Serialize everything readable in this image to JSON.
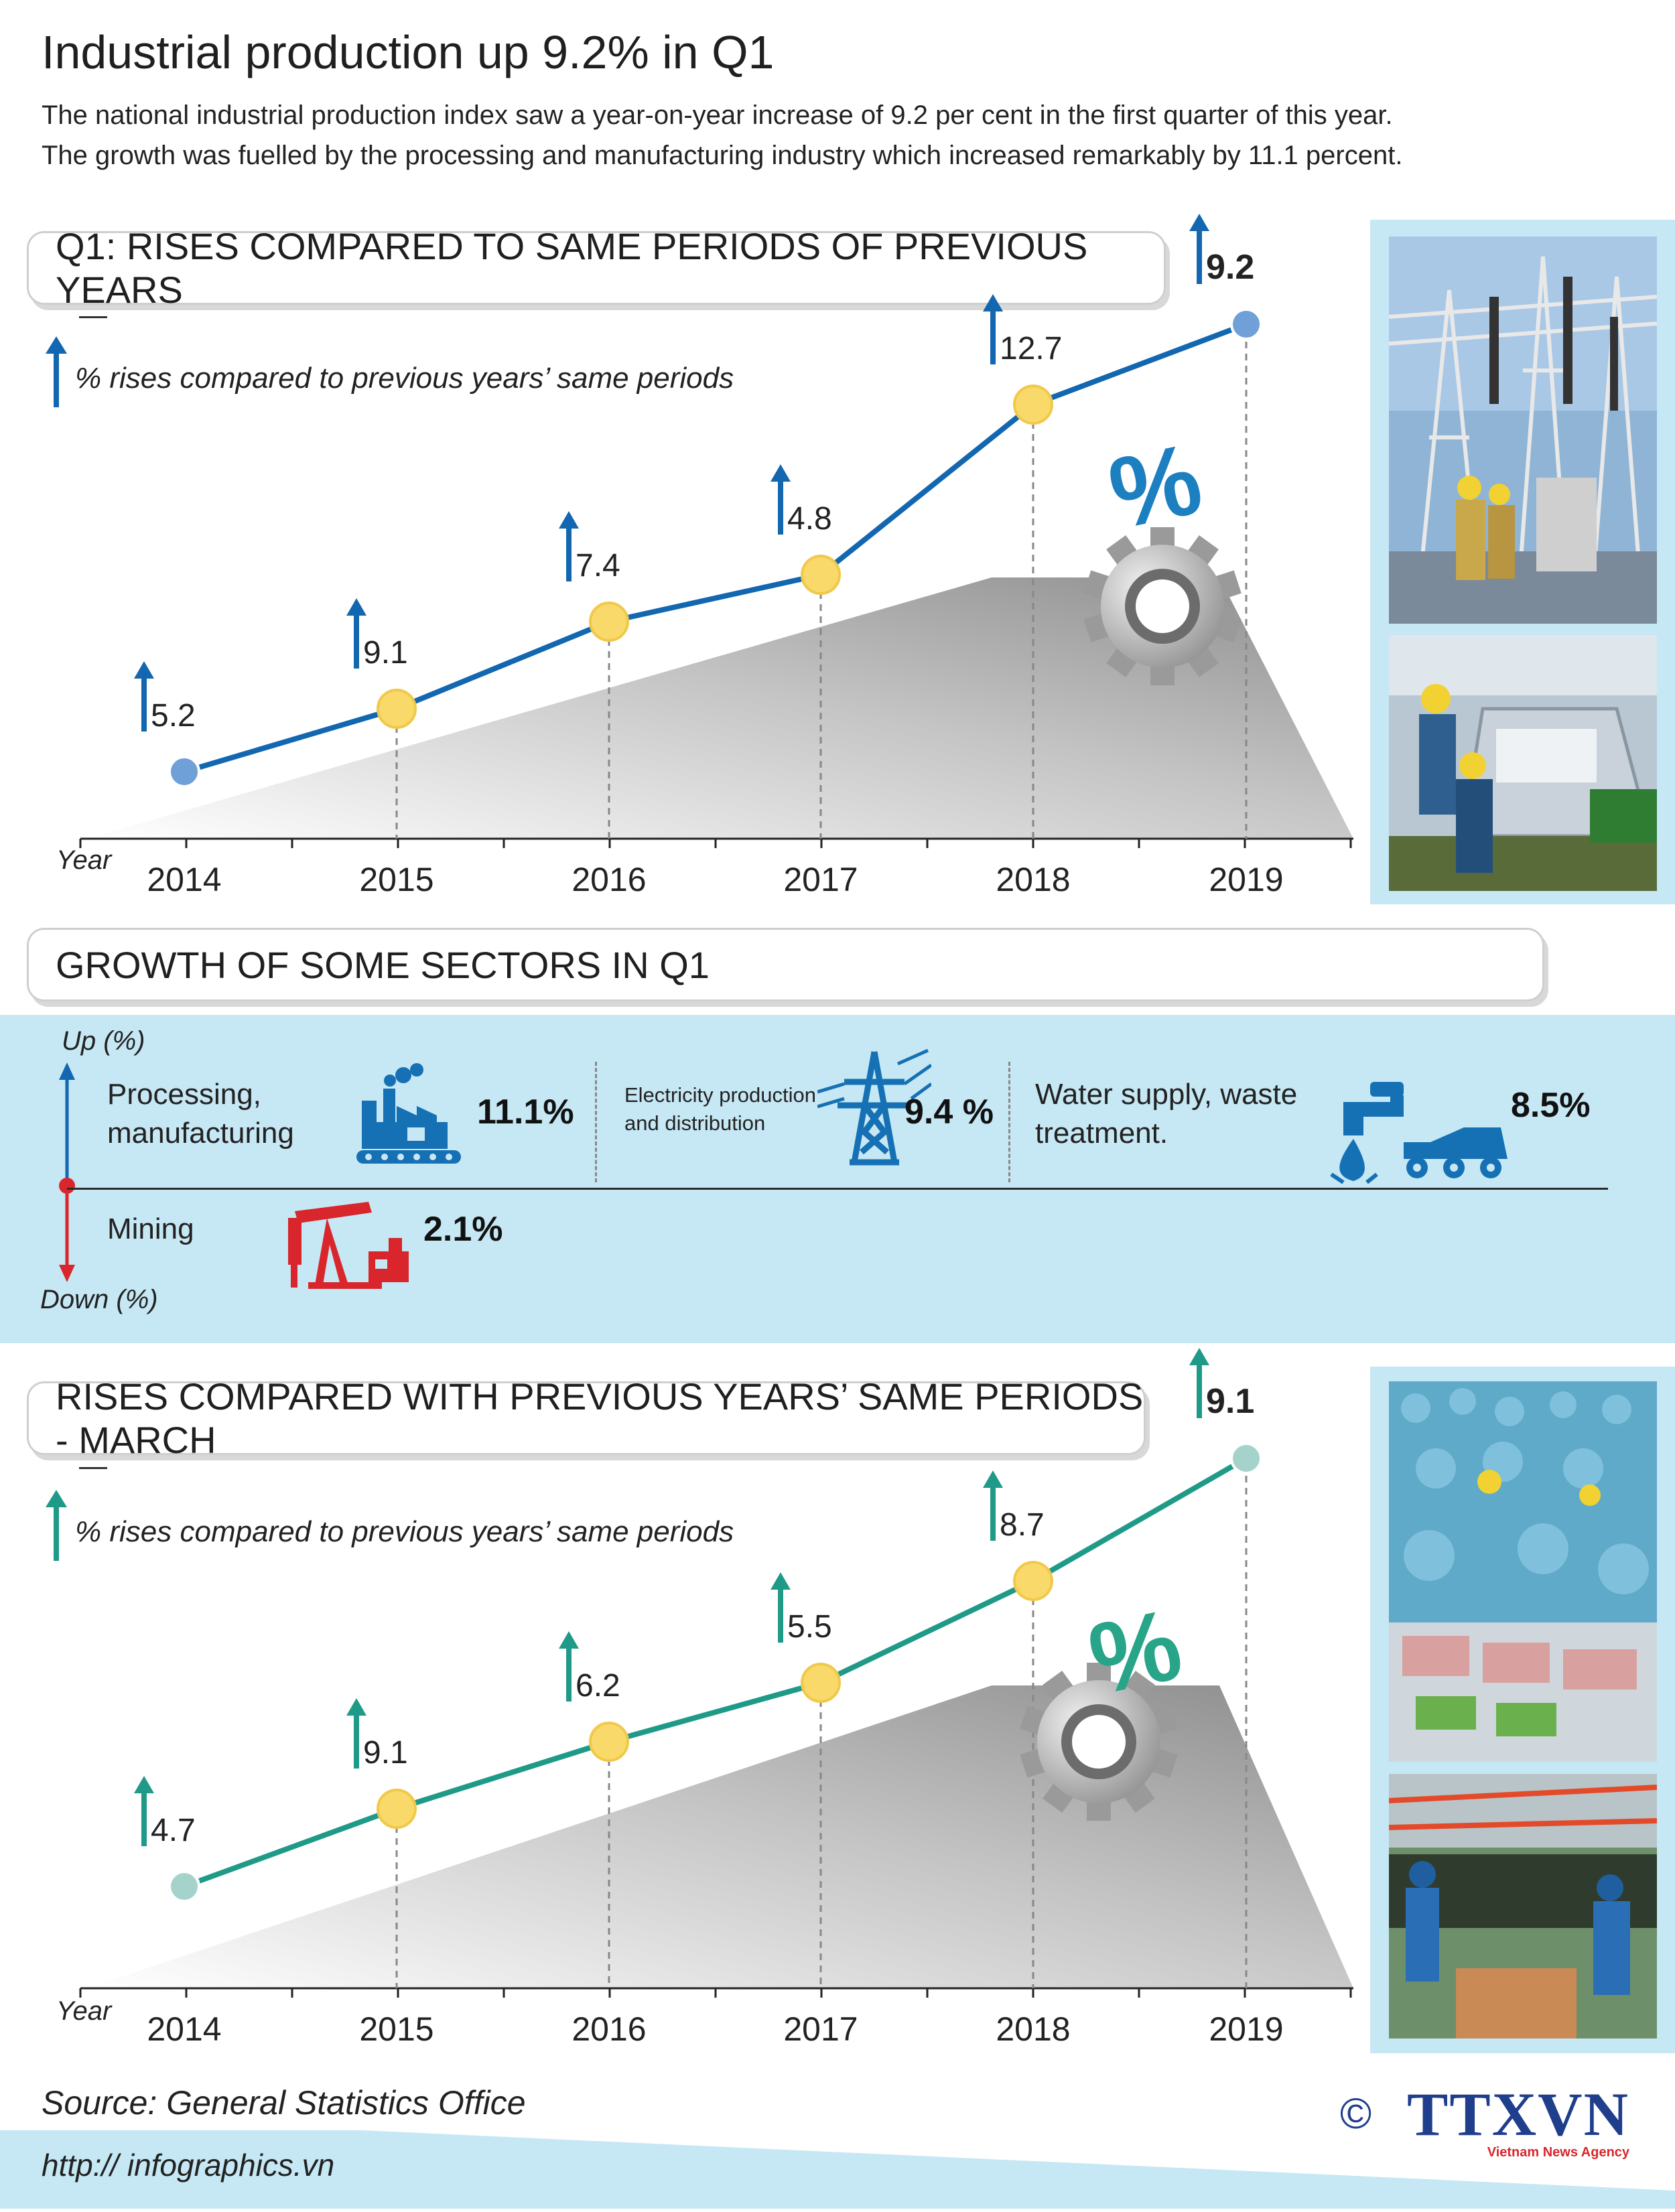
{
  "header": {
    "title": "Industrial production up 9.2% in Q1",
    "intro_line1": "The national industrial production index saw a year-on-year increase of 9.2 per cent in the first quarter of this year.",
    "intro_line2": "The growth was fuelled by the processing and manufacturing industry which increased remarkably by 11.1 percent."
  },
  "colors": {
    "q1_line": "#1267b0",
    "march_line": "#1f9a88",
    "point_yellow": "#f8d96a",
    "band": "#c6e7f4",
    "down_red": "#d9262c"
  },
  "section1": {
    "heading": "Q1: RISES COMPARED TO SAME PERIODS OF PREVIOUS YEARS",
    "legend": "% rises compared to previous years’ same periods",
    "axis_label": "Year"
  },
  "section2": {
    "heading": "GROWTH OF SOME SECTORS IN Q1",
    "up_label": "Up (%)",
    "down_label": "Down (%)",
    "sectors": [
      {
        "name_line1": "Processing,",
        "name_line2": "manufacturing",
        "value": "11.1%",
        "icon": "factory-icon"
      },
      {
        "name_line1": "Electricity production",
        "name_line2": "and distribution",
        "value": "9.4 %",
        "icon": "power-tower-icon"
      },
      {
        "name_line1": "Water supply, waste",
        "name_line2": "treatment.",
        "value": "8.5%",
        "icon": "faucet-truck-icon"
      },
      {
        "name_line1": "Mining",
        "name_line2": "",
        "value": "2.1%",
        "icon": "oil-pump-icon"
      }
    ]
  },
  "section3": {
    "heading": "RISES COMPARED WITH PREVIOUS YEARS’ SAME PERIODS - MARCH",
    "legend": "% rises compared to previous years’ same periods",
    "axis_label": "Year"
  },
  "chart_data": [
    {
      "type": "line",
      "title": "Q1: RISES COMPARED TO SAME PERIODS OF PREVIOUS YEARS",
      "xlabel": "Year",
      "ylabel": "",
      "categories": [
        "2014",
        "2015",
        "2016",
        "2017",
        "2018",
        "2019"
      ],
      "series": [
        {
          "name": "% rises compared to previous years’ same periods",
          "values": [
            5.2,
            9.1,
            7.4,
            4.8,
            12.7,
            9.2
          ]
        }
      ],
      "value_labels": [
        "5.2",
        "9.1",
        "7.4",
        "4.8",
        "12.7",
        "9.2"
      ],
      "grid": false,
      "legend": "top-left"
    },
    {
      "type": "line",
      "title": "RISES COMPARED WITH PREVIOUS YEARS’ SAME PERIODS - MARCH",
      "xlabel": "Year",
      "ylabel": "",
      "categories": [
        "2014",
        "2015",
        "2016",
        "2017",
        "2018",
        "2019"
      ],
      "series": [
        {
          "name": "% rises compared to previous years’ same periods",
          "values": [
            4.7,
            9.1,
            6.2,
            5.5,
            8.7,
            9.1
          ]
        }
      ],
      "value_labels": [
        "4.7",
        "9.1",
        "6.2",
        "5.5",
        "8.7",
        "9.1"
      ],
      "grid": false,
      "legend": "top-left"
    }
  ],
  "footer": {
    "source": "Source: General Statistics Office",
    "url": "http:// infographics.vn",
    "copyright": "©",
    "logo_text": "TTXVN",
    "logo_sub": "Vietnam News Agency"
  }
}
